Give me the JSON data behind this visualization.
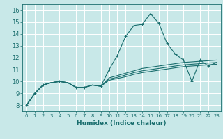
{
  "title": "",
  "xlabel": "Humidex (Indice chaleur)",
  "bg_color": "#c8e8e8",
  "grid_color": "#ffffff",
  "line_color": "#1a6e6e",
  "xlim": [
    -0.5,
    23.5
  ],
  "ylim": [
    7.5,
    16.5
  ],
  "xticks": [
    0,
    1,
    2,
    3,
    4,
    5,
    6,
    7,
    8,
    9,
    10,
    11,
    12,
    13,
    14,
    15,
    16,
    17,
    18,
    19,
    20,
    21,
    22,
    23
  ],
  "yticks": [
    8,
    9,
    10,
    11,
    12,
    13,
    14,
    15,
    16
  ],
  "series": [
    [
      8.0,
      9.0,
      9.7,
      9.9,
      10.0,
      9.9,
      9.5,
      9.5,
      9.7,
      9.6,
      11.0,
      12.2,
      13.8,
      14.7,
      14.8,
      15.7,
      14.9,
      13.2,
      12.3,
      11.8,
      10.0,
      11.8,
      11.3,
      11.6
    ],
    [
      8.0,
      9.0,
      9.7,
      9.9,
      10.0,
      9.9,
      9.5,
      9.5,
      9.7,
      9.6,
      10.3,
      10.5,
      10.7,
      10.9,
      11.1,
      11.2,
      11.3,
      11.4,
      11.5,
      11.6,
      11.65,
      11.7,
      11.75,
      11.8
    ],
    [
      8.0,
      9.0,
      9.7,
      9.9,
      10.0,
      9.9,
      9.5,
      9.5,
      9.7,
      9.6,
      10.2,
      10.35,
      10.55,
      10.75,
      10.9,
      11.0,
      11.1,
      11.2,
      11.3,
      11.4,
      11.45,
      11.5,
      11.55,
      11.6
    ],
    [
      8.0,
      9.0,
      9.7,
      9.9,
      10.0,
      9.9,
      9.5,
      9.5,
      9.7,
      9.6,
      10.1,
      10.25,
      10.4,
      10.6,
      10.75,
      10.85,
      10.95,
      11.05,
      11.15,
      11.25,
      11.3,
      11.35,
      11.4,
      11.45
    ]
  ]
}
